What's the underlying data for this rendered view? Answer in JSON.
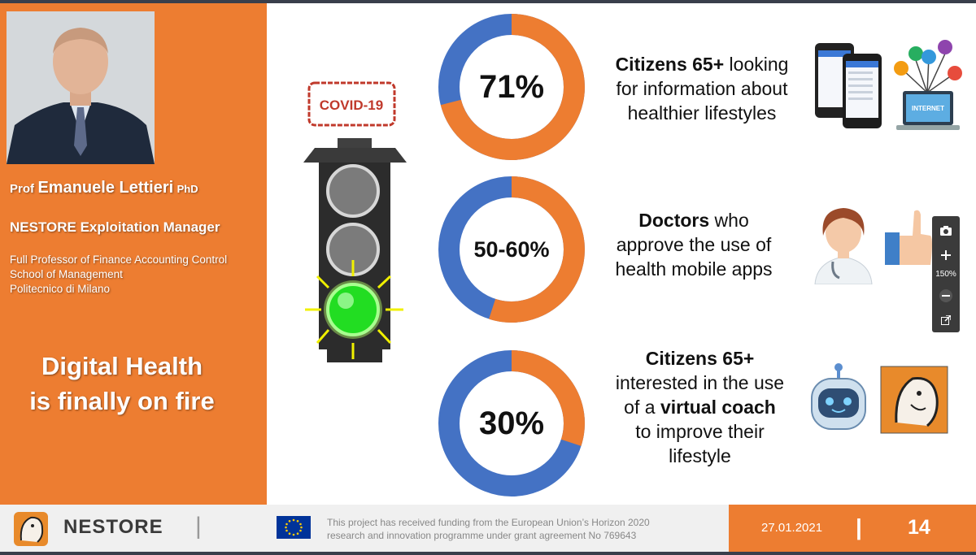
{
  "speaker": {
    "prefix": "Prof",
    "name": "Emanuele Lettieri",
    "suffix": "PhD",
    "role": "NESTORE Exploitation Manager",
    "affiliation": [
      "Full Professor of Finance Accounting Control",
      "School of Management",
      "Politecnico di Milano"
    ]
  },
  "tagline": [
    "Digital Health",
    "is finally on fire"
  ],
  "covid_stamp": "COVID-19",
  "stats": [
    {
      "label": "71%",
      "fraction": 0.71,
      "text_parts": [
        [
          "Citizens 65+",
          true
        ],
        [
          " looking",
          false
        ]
      ],
      "lines": [
        "for information about",
        "healthier lifestyles"
      ]
    },
    {
      "label": "50-60%",
      "fraction": 0.55,
      "text_parts": [
        [
          "Doctors",
          true
        ],
        [
          " who",
          false
        ]
      ],
      "lines": [
        "approve the use of",
        "health mobile apps"
      ]
    },
    {
      "label": "30%",
      "fraction": 0.3,
      "text_parts": [
        [
          "Citizens 65+",
          true
        ]
      ],
      "lines": [
        "interested in the use",
        "of a |virtual coach|",
        "to improve their",
        "lifestyle"
      ]
    }
  ],
  "colors": {
    "accent": "#ed7d31",
    "blue": "#4472c4"
  },
  "icons": {
    "internet_caption": "INTERNET"
  },
  "zoom": {
    "level": "150%"
  },
  "footer": {
    "brand": "NESTORE",
    "funding_line1": "This project has received funding from the European Union’s Horizon 2020",
    "funding_line2": "research and innovation programme under grant agreement No 769643",
    "date": "27.01.2021",
    "page": "14"
  }
}
